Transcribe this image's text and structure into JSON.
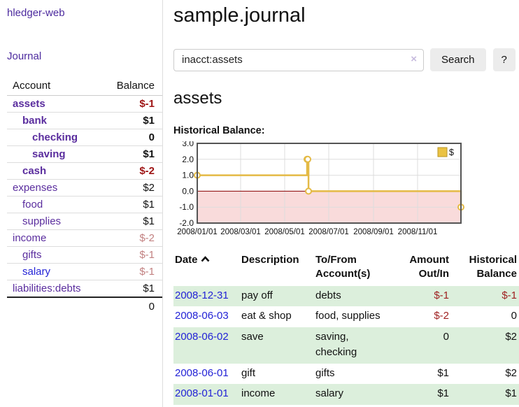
{
  "sidebar": {
    "brand": "hledger-web",
    "journal_link": "Journal",
    "accounts_table": {
      "headers": {
        "account": "Account",
        "balance": "Balance"
      },
      "rows": [
        {
          "name": "assets",
          "indent": 1,
          "bold": true,
          "balance": "$-1",
          "balance_style": "neg-strong"
        },
        {
          "name": "bank",
          "indent": 2,
          "bold": true,
          "balance": "$1",
          "balance_style": "pos"
        },
        {
          "name": "checking",
          "indent": 3,
          "bold": true,
          "balance": "0",
          "balance_style": "pos"
        },
        {
          "name": "saving",
          "indent": 3,
          "bold": true,
          "balance": "$1",
          "balance_style": "pos"
        },
        {
          "name": "cash",
          "indent": 2,
          "bold": true,
          "balance": "$-2",
          "balance_style": "neg-strong"
        },
        {
          "name": "expenses",
          "indent": 1,
          "bold": false,
          "balance": "$2",
          "balance_style": "pos"
        },
        {
          "name": "food",
          "indent": 2,
          "bold": false,
          "balance": "$1",
          "balance_style": "pos"
        },
        {
          "name": "supplies",
          "indent": 2,
          "bold": false,
          "balance": "$1",
          "balance_style": "pos"
        },
        {
          "name": "income",
          "indent": 1,
          "bold": false,
          "balance": "$-2",
          "balance_style": "neg-soft"
        },
        {
          "name": "gifts",
          "indent": 2,
          "bold": false,
          "balance": "$-1",
          "balance_style": "neg-soft"
        },
        {
          "name": "salary",
          "indent": 2,
          "bold": false,
          "balance": "$-1",
          "balance_style": "neg-soft",
          "link_color": "blue"
        },
        {
          "name": "liabilities:debts",
          "indent": 1,
          "bold": false,
          "balance": "$1",
          "balance_style": "pos"
        }
      ],
      "total": "0"
    }
  },
  "header": {
    "title": "sample.journal"
  },
  "search": {
    "query": "inacct:assets",
    "clear_icon": "×",
    "button_label": "Search",
    "help_label": "?"
  },
  "account_view": {
    "heading": "assets",
    "chart_label": "Historical Balance:"
  },
  "chart_data": {
    "type": "line",
    "title": "Historical Balance:",
    "ylim": [
      -2,
      3
    ],
    "y_ticks": [
      3.0,
      2.0,
      1.0,
      0.0,
      -1.0,
      -2.0
    ],
    "x_range": [
      "2008-01-01",
      "2008-12-31"
    ],
    "x_ticks": [
      {
        "date": "2008-01-01",
        "label": "2008/01/01"
      },
      {
        "date": "2008-03-01",
        "label": "2008/03/01"
      },
      {
        "date": "2008-05-01",
        "label": "2008/05/01"
      },
      {
        "date": "2008-07-01",
        "label": "2008/07/01"
      },
      {
        "date": "2008-09-01",
        "label": "2008/09/01"
      },
      {
        "date": "2008-11-01",
        "label": "2008/11/01"
      }
    ],
    "series": [
      {
        "name": "$",
        "color": "#E4BA45",
        "marker_fill": "#FFFFFF",
        "step": true,
        "points": [
          {
            "date": "2008-01-01",
            "value": 1
          },
          {
            "date": "2008-06-01",
            "value": 2
          },
          {
            "date": "2008-06-02",
            "value": 2
          },
          {
            "date": "2008-06-03",
            "value": 0
          },
          {
            "date": "2008-12-31",
            "value": -1
          }
        ]
      }
    ],
    "legend": {
      "label": "$",
      "position": "top-right",
      "swatch_color": "#EAC243"
    },
    "grid": true,
    "grid_color": "#dddddd",
    "border_color": "#555555",
    "negative_region_color": "#F9DBDB",
    "zero_line_color": "#8B0000"
  },
  "register_table": {
    "headers": {
      "date": "Date",
      "description": "Description",
      "account": "To/From Account(s)",
      "amount": "Amount Out/In",
      "balance": "Historical Balance"
    },
    "rows": [
      {
        "date": "2008-12-31",
        "description": "pay off",
        "accounts": "debts",
        "amount": "$-1",
        "amount_neg": true,
        "balance": "$-1",
        "balance_neg": true
      },
      {
        "date": "2008-06-03",
        "description": "eat & shop",
        "accounts": "food, supplies",
        "amount": "$-2",
        "amount_neg": true,
        "balance": "0",
        "balance_neg": false
      },
      {
        "date": "2008-06-02",
        "description": "save",
        "accounts": "saving, checking",
        "amount": "0",
        "amount_neg": false,
        "balance": "$2",
        "balance_neg": false
      },
      {
        "date": "2008-06-01",
        "description": "gift",
        "accounts": "gifts",
        "amount": "$1",
        "amount_neg": false,
        "balance": "$2",
        "balance_neg": false
      },
      {
        "date": "2008-01-01",
        "description": "income",
        "accounts": "salary",
        "amount": "$1",
        "amount_neg": false,
        "balance": "$1",
        "balance_neg": false
      }
    ]
  }
}
